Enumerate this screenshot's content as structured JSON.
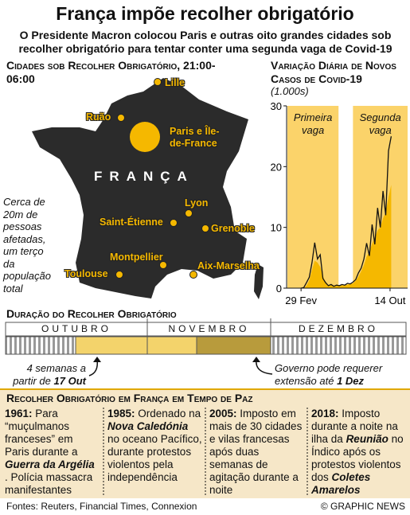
{
  "header": {
    "title": "França impõe recolher obrigatório",
    "subtitle": "O Presidente Macron colocou Paris e outras oito grandes cidades sob recolher obrigatório para tentar conter uma segunda vaga de Covid-19"
  },
  "map": {
    "title": "Cidades sob Recolher Obrigatório, 21:00-06:00",
    "country": "FRANÇA",
    "cities": [
      "Lille",
      "Ruão",
      "Paris e Île-de-France",
      "Lyon",
      "Saint-Étienne",
      "Grenoble",
      "Montpellier",
      "Toulouse",
      "Aix-Marselha"
    ],
    "note": "Cerca de 20m de pessoas afetadas, um terço da população total"
  },
  "chart_data": {
    "type": "line",
    "title": "Variação Diária de Novos Casos de Covid-19",
    "unit": "(1.000s)",
    "x": [
      0,
      7,
      14,
      21,
      28,
      35,
      42,
      49,
      56,
      63,
      70,
      77,
      84,
      91,
      98,
      105,
      112,
      119,
      126,
      133,
      140,
      147,
      154,
      161,
      168,
      175,
      182,
      189,
      196,
      203,
      210,
      217,
      224,
      231
    ],
    "series": [
      {
        "color": "#111111",
        "values": [
          0,
          0.1,
          0.9,
          1.8,
          4.2,
          7.5,
          4.8,
          5.5,
          1.6,
          0.9,
          0.4,
          0.6,
          0.3,
          0.5,
          0.4,
          0.6,
          0.5,
          0.8,
          0.7,
          1.0,
          1.4,
          2.5,
          3.3,
          4.8,
          7.4,
          5.3,
          10.5,
          7.2,
          13.2,
          10.0,
          16.0,
          12.0,
          22.6,
          25.0
        ]
      },
      {
        "color": "#f5b800",
        "values": [
          0,
          0,
          0.4,
          1.3,
          3.0,
          4.5,
          4.2,
          3.5,
          2.0,
          0.9,
          0.5,
          0.5,
          0.4,
          0.4,
          0.4,
          0.5,
          0.5,
          0.6,
          0.7,
          0.8,
          1.2,
          1.9,
          2.8,
          3.8,
          5.2,
          6.0,
          7.3,
          8.3,
          9.5,
          10.0,
          11.5,
          12.5,
          15.0,
          17.0
        ]
      }
    ],
    "xlim": [
      -35,
      273
    ],
    "xticks": [
      {
        "value": 0,
        "label": "29 Fev"
      },
      {
        "value": 228,
        "label": "14 Out"
      }
    ],
    "ylim": [
      0,
      30
    ],
    "yticks": [
      0,
      10,
      20,
      30
    ],
    "bands": [
      {
        "label": "Primeira vaga",
        "range": [
          -35,
          96
        ],
        "color": "#fbd36a"
      },
      {
        "label": "Segunda vaga",
        "range": [
          133,
          273
        ],
        "color": "#fbd36a"
      }
    ]
  },
  "timeline": {
    "title": "Duração do Recolher Obrigatório",
    "months": [
      "OUTUBRO",
      "NOVEMBRO",
      "DEZEMBRO"
    ],
    "start_note": "4 semanas a partir de",
    "start_date": "17 Out",
    "end_note": "Governo pode requerer extensão até",
    "end_date": "1 Dez"
  },
  "history": {
    "title": "Recolher Obrigatório em França em Tempo de Paz",
    "items": [
      {
        "year": "1961:",
        "parts": [
          {
            "text": "Para “muçulmanos franceses” em Paris durante a"
          },
          {
            "text": "Guerra da Argélia",
            "em": true
          },
          {
            "text": ". Polícia massacra manifestantes"
          }
        ]
      },
      {
        "year": "1985:",
        "parts": [
          {
            "text": "Ordenado na"
          },
          {
            "text": "Nova Caledónia",
            "em": true
          },
          {
            "text": "no oceano Pacífico, durante protestos violentos pela independência"
          }
        ]
      },
      {
        "year": "2005:",
        "parts": [
          {
            "text": "Imposto em mais de 30 cidades e vilas francesas após duas semanas de agitação durante a noite"
          }
        ]
      },
      {
        "year": "2018:",
        "parts": [
          {
            "text": "Imposto durante a noite na ilha da"
          },
          {
            "text": "Reunião",
            "em": true
          },
          {
            "text": "no Índico após os protestos violentos dos"
          },
          {
            "text": "Coletes Amarelos",
            "em": true
          }
        ]
      }
    ]
  },
  "footer": {
    "source": "Fontes: Reuters, Financial Times, Connexion",
    "credit": "© GRAPHIC NEWS"
  }
}
